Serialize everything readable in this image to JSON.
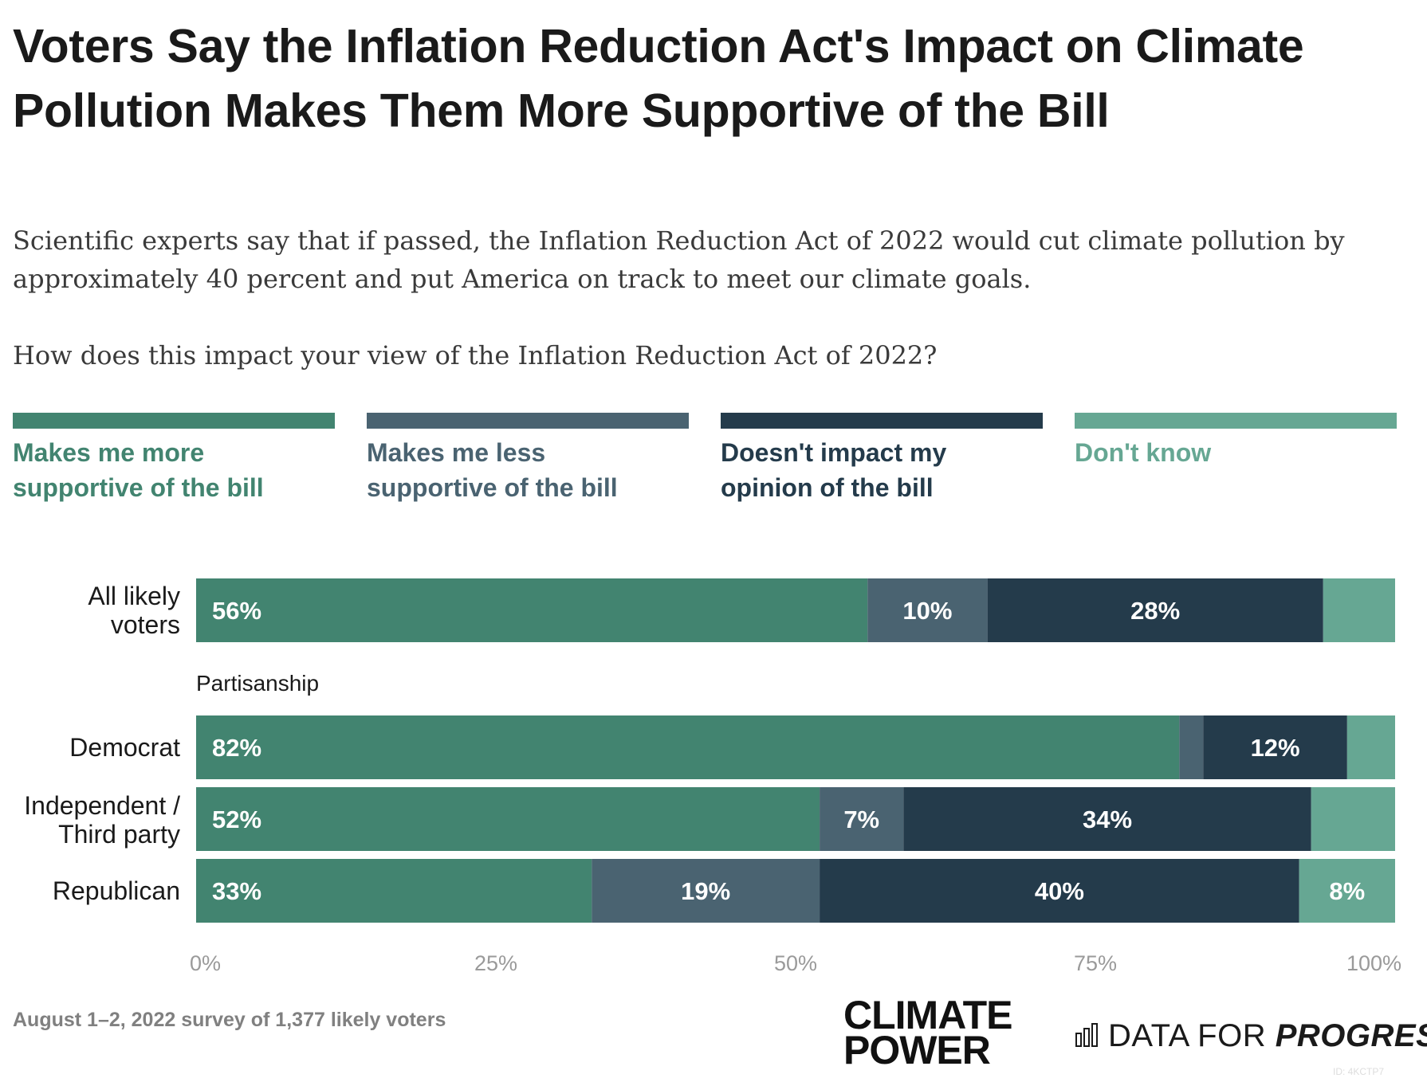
{
  "header": {
    "title": "Voters Say the Inflation Reduction Act's Impact on Climate Pollution Makes Them More Supportive of the Bill",
    "subtitle": "Scientific experts say that if passed, the Inflation Reduction Act of 2022 would cut climate pollution by approximately 40 percent and put America on track to meet our climate goals.",
    "question": "How does this impact your view of the Inflation Reduction Act of 2022?"
  },
  "legend": [
    {
      "label": "Makes me more supportive of the bill",
      "color": "#428470"
    },
    {
      "label": "Makes me less supportive of the bill",
      "color": "#4a6371"
    },
    {
      "label": "Doesn't impact my opinion of the bill",
      "color": "#243b4b"
    },
    {
      "label": "Don't know",
      "color": "#66a793"
    }
  ],
  "chart_data": {
    "type": "bar",
    "orientation": "horizontal",
    "stacked": true,
    "xlim": [
      0,
      100
    ],
    "x_ticks": [
      "0%",
      "25%",
      "50%",
      "75%",
      "100%"
    ],
    "categories": [
      "All likely voters",
      "Democrat",
      "Independent / Third party",
      "Republican"
    ],
    "group_label": "Partisanship",
    "series": [
      {
        "name": "Makes me more supportive of the bill",
        "color": "#428470",
        "values": [
          56,
          82,
          52,
          33
        ],
        "labels": [
          "56%",
          "82%",
          "52%",
          "33%"
        ]
      },
      {
        "name": "Makes me less supportive of the bill",
        "color": "#4a6371",
        "values": [
          10,
          2,
          7,
          19
        ],
        "labels": [
          "10%",
          "",
          "7%",
          "19%"
        ]
      },
      {
        "name": "Doesn't impact my opinion of the bill",
        "color": "#243b4b",
        "values": [
          28,
          12,
          34,
          40
        ],
        "labels": [
          "28%",
          "12%",
          "34%",
          "40%"
        ]
      },
      {
        "name": "Don't know",
        "color": "#66a793",
        "values": [
          6,
          4,
          7,
          8
        ],
        "labels": [
          "",
          "",
          "",
          "8%"
        ]
      }
    ]
  },
  "footer": {
    "note": "August 1–2, 2022 survey of 1,377 likely voters",
    "logo_climate_power_line1": "CLIMATE",
    "logo_climate_power_line2": "POWER",
    "logo_dfp_regular": "DATA FOR ",
    "logo_dfp_bold": "PROGRESS",
    "chart_id": "ID: 4KCTP7"
  }
}
